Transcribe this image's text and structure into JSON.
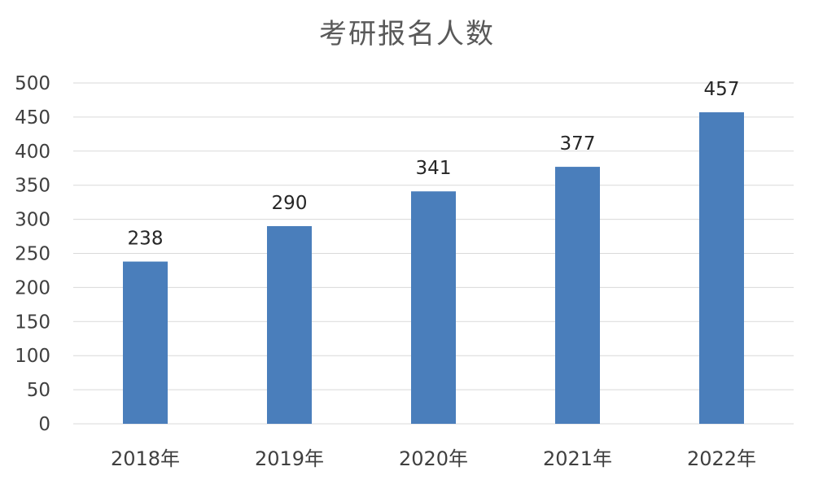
{
  "chart_data": {
    "type": "bar",
    "title": "考研报名人数",
    "categories": [
      "2018年",
      "2019年",
      "2020年",
      "2021年",
      "2022年"
    ],
    "series": [
      {
        "values": [
          238,
          290,
          341,
          377,
          457
        ]
      }
    ],
    "ylim": [
      0,
      500
    ],
    "yticks": [
      "0",
      "50",
      "100",
      "150",
      "200",
      "250",
      "300",
      "350",
      "400",
      "450",
      "500"
    ],
    "data_labels": [
      "238",
      "290",
      "341",
      "377",
      "457"
    ],
    "grid": true,
    "legend": "none",
    "bar_color": "#4a7ebb",
    "grid_color": "#d9d9d9"
  }
}
